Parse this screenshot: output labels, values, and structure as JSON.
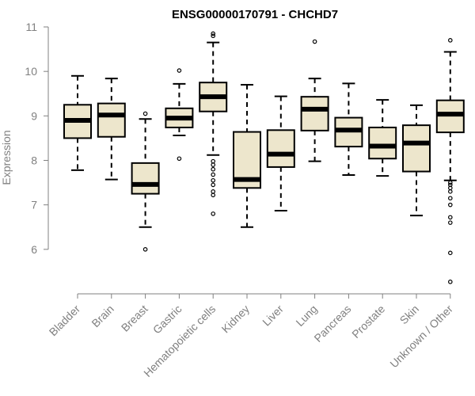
{
  "chart_data": {
    "type": "boxplot",
    "title": "ENSG00000170791 - CHCHD7",
    "ylabel": "Expression",
    "xlabel": "",
    "ylim": [
      5,
      11
    ],
    "yticks": [
      6,
      7,
      8,
      9,
      10,
      11
    ],
    "grid": false,
    "colors": {
      "box_fill": "#ede6cc",
      "stroke": "#000000",
      "axis": "#808080"
    },
    "categories": [
      "Bladder",
      "Brain",
      "Breast",
      "Gastric",
      "Hematopoietic cells",
      "Kidney",
      "Liver",
      "Lung",
      "Pancreas",
      "Prostate",
      "Skin",
      "Unknown / Other"
    ],
    "boxes": [
      {
        "whisker_low": 7.78,
        "q1": 8.5,
        "median": 8.9,
        "q3": 9.25,
        "whisker_high": 9.9,
        "outliers": []
      },
      {
        "whisker_low": 7.57,
        "q1": 8.53,
        "median": 9.02,
        "q3": 9.28,
        "whisker_high": 9.84,
        "outliers": []
      },
      {
        "whisker_low": 6.5,
        "q1": 7.25,
        "median": 7.46,
        "q3": 7.94,
        "whisker_high": 8.93,
        "outliers": [
          9.05,
          6.0
        ]
      },
      {
        "whisker_low": 8.56,
        "q1": 8.74,
        "median": 8.95,
        "q3": 9.17,
        "whisker_high": 9.72,
        "outliers": [
          10.02,
          8.04
        ]
      },
      {
        "whisker_low": 8.12,
        "q1": 9.1,
        "median": 9.43,
        "q3": 9.75,
        "whisker_high": 10.65,
        "outliers": [
          10.8,
          10.85,
          7.98,
          7.9,
          7.8,
          7.68,
          7.55,
          7.45,
          7.3,
          7.22,
          6.8
        ]
      },
      {
        "whisker_low": 6.5,
        "q1": 7.38,
        "median": 7.57,
        "q3": 8.64,
        "whisker_high": 9.7,
        "outliers": []
      },
      {
        "whisker_low": 6.87,
        "q1": 7.85,
        "median": 8.14,
        "q3": 8.68,
        "whisker_high": 9.44,
        "outliers": []
      },
      {
        "whisker_low": 7.98,
        "q1": 8.67,
        "median": 9.15,
        "q3": 9.43,
        "whisker_high": 9.84,
        "outliers": [
          10.67
        ]
      },
      {
        "whisker_low": 7.67,
        "q1": 8.31,
        "median": 8.68,
        "q3": 8.96,
        "whisker_high": 9.73,
        "outliers": []
      },
      {
        "whisker_low": 7.65,
        "q1": 8.04,
        "median": 8.32,
        "q3": 8.74,
        "whisker_high": 9.36,
        "outliers": []
      },
      {
        "whisker_low": 6.76,
        "q1": 7.75,
        "median": 8.39,
        "q3": 8.79,
        "whisker_high": 9.24,
        "outliers": []
      },
      {
        "whisker_low": 7.55,
        "q1": 8.63,
        "median": 9.04,
        "q3": 9.35,
        "whisker_high": 10.44,
        "outliers": [
          10.7,
          7.5,
          7.45,
          7.38,
          7.3,
          7.15,
          7.0,
          6.72,
          6.6,
          5.92,
          5.27
        ]
      }
    ]
  }
}
